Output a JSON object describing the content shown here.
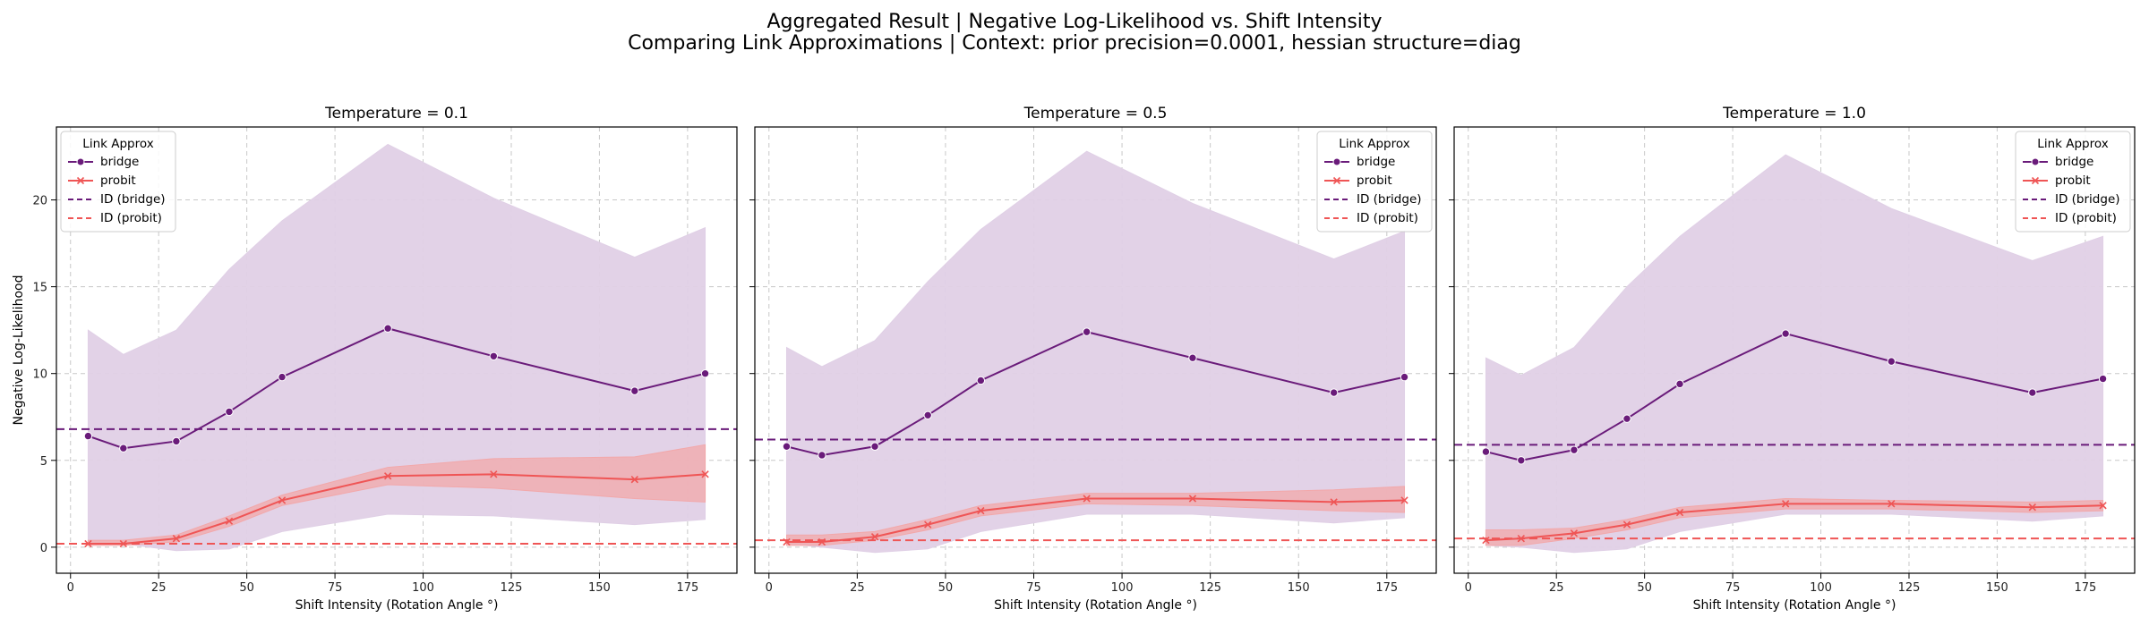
{
  "suptitle_line1": "Aggregated Result | Negative Log-Likelihood vs. Shift Intensity",
  "suptitle_line2": "Comparing Link Approximations | Context: prior precision=0.0001, hessian structure=diag",
  "colors": {
    "bridge": "#6a1b7a",
    "bridge_band": "#e0d0e6",
    "probit": "#ef5555",
    "probit_band": "#f2a8aa",
    "grid": "#c8c8c8"
  },
  "chart_data": [
    {
      "type": "line",
      "title": "Temperature = 0.1",
      "xlabel": "Shift Intensity (Rotation Angle °)",
      "ylabel": "Negative Log-Likelihood",
      "xlim": [
        -4,
        189
      ],
      "ylim": [
        -1.5,
        24.2
      ],
      "xticks": [
        0,
        25,
        50,
        75,
        100,
        125,
        150,
        175
      ],
      "yticks": [
        0,
        5,
        10,
        15,
        20
      ],
      "grid": true,
      "legend": {
        "title": "Link Approx",
        "placement": "top-left",
        "entries": [
          "bridge",
          "probit",
          "ID (bridge)",
          "ID (probit)"
        ]
      },
      "x": [
        5,
        15,
        30,
        45,
        60,
        90,
        120,
        160,
        180
      ],
      "series": [
        {
          "name": "bridge",
          "marker": "circle",
          "values": [
            6.4,
            5.7,
            6.1,
            7.8,
            9.8,
            12.6,
            11.0,
            9.0,
            10.0
          ],
          "band_upper": [
            12.5,
            11.1,
            12.5,
            16.0,
            18.8,
            23.2,
            20.1,
            16.7,
            18.4
          ],
          "band_lower": [
            0.2,
            0.2,
            -0.2,
            -0.1,
            0.9,
            1.9,
            1.8,
            1.3,
            1.6
          ]
        },
        {
          "name": "probit",
          "marker": "x",
          "values": [
            0.2,
            0.2,
            0.5,
            1.5,
            2.7,
            4.1,
            4.2,
            3.9,
            4.2
          ],
          "band_upper": [
            0.4,
            0.4,
            0.7,
            1.8,
            3.0,
            4.6,
            5.1,
            5.2,
            5.9
          ],
          "band_lower": [
            0.1,
            0.1,
            0.3,
            1.2,
            2.4,
            3.6,
            3.4,
            2.8,
            2.6
          ]
        }
      ],
      "hlines": [
        {
          "name": "ID (bridge)",
          "y": 6.8
        },
        {
          "name": "ID (probit)",
          "y": 0.2
        }
      ]
    },
    {
      "type": "line",
      "title": "Temperature = 0.5",
      "xlabel": "Shift Intensity (Rotation Angle °)",
      "ylabel": "",
      "xlim": [
        -4,
        189
      ],
      "ylim": [
        -1.5,
        24.2
      ],
      "xticks": [
        0,
        25,
        50,
        75,
        100,
        125,
        150,
        175
      ],
      "yticks": [
        0,
        5,
        10,
        15,
        20
      ],
      "grid": true,
      "legend": {
        "title": "Link Approx",
        "placement": "top-right",
        "entries": [
          "bridge",
          "probit",
          "ID (bridge)",
          "ID (probit)"
        ]
      },
      "x": [
        5,
        15,
        30,
        45,
        60,
        90,
        120,
        160,
        180
      ],
      "series": [
        {
          "name": "bridge",
          "marker": "circle",
          "values": [
            5.8,
            5.3,
            5.8,
            7.6,
            9.6,
            12.4,
            10.9,
            8.9,
            9.8
          ],
          "band_upper": [
            11.5,
            10.4,
            11.9,
            15.3,
            18.3,
            22.8,
            19.8,
            16.6,
            18.2
          ],
          "band_lower": [
            0.2,
            0.0,
            -0.3,
            -0.1,
            0.9,
            1.9,
            1.9,
            1.4,
            1.7
          ]
        },
        {
          "name": "probit",
          "marker": "x",
          "values": [
            0.3,
            0.3,
            0.6,
            1.3,
            2.1,
            2.8,
            2.8,
            2.6,
            2.7
          ],
          "band_upper": [
            0.7,
            0.7,
            0.9,
            1.6,
            2.4,
            3.1,
            3.1,
            3.3,
            3.5
          ],
          "band_lower": [
            0.1,
            0.1,
            0.4,
            1.0,
            1.8,
            2.5,
            2.4,
            2.1,
            2.0
          ]
        }
      ],
      "hlines": [
        {
          "name": "ID (bridge)",
          "y": 6.2
        },
        {
          "name": "ID (probit)",
          "y": 0.4
        }
      ]
    },
    {
      "type": "line",
      "title": "Temperature = 1.0",
      "xlabel": "Shift Intensity (Rotation Angle °)",
      "ylabel": "",
      "xlim": [
        -4,
        189
      ],
      "ylim": [
        -1.5,
        24.2
      ],
      "xticks": [
        0,
        25,
        50,
        75,
        100,
        125,
        150,
        175
      ],
      "yticks": [
        0,
        5,
        10,
        15,
        20
      ],
      "grid": true,
      "legend": {
        "title": "Link Approx",
        "placement": "top-right",
        "entries": [
          "bridge",
          "probit",
          "ID (bridge)",
          "ID (probit)"
        ]
      },
      "x": [
        5,
        15,
        30,
        45,
        60,
        90,
        120,
        160,
        180
      ],
      "series": [
        {
          "name": "bridge",
          "marker": "circle",
          "values": [
            5.5,
            5.0,
            5.6,
            7.4,
            9.4,
            12.3,
            10.7,
            8.9,
            9.7
          ],
          "band_upper": [
            10.9,
            9.9,
            11.5,
            15.0,
            17.9,
            22.6,
            19.5,
            16.5,
            17.9
          ],
          "band_lower": [
            0.1,
            0.0,
            -0.3,
            -0.1,
            0.9,
            1.9,
            1.9,
            1.5,
            1.8
          ]
        },
        {
          "name": "probit",
          "marker": "x",
          "values": [
            0.4,
            0.5,
            0.8,
            1.3,
            2.0,
            2.5,
            2.5,
            2.3,
            2.4
          ],
          "band_upper": [
            1.0,
            1.0,
            1.1,
            1.6,
            2.3,
            2.8,
            2.7,
            2.6,
            2.7
          ],
          "band_lower": [
            0.1,
            0.1,
            0.5,
            1.0,
            1.7,
            2.2,
            2.2,
            2.0,
            2.1
          ]
        }
      ],
      "hlines": [
        {
          "name": "ID (bridge)",
          "y": 5.9
        },
        {
          "name": "ID (probit)",
          "y": 0.5
        }
      ]
    }
  ]
}
